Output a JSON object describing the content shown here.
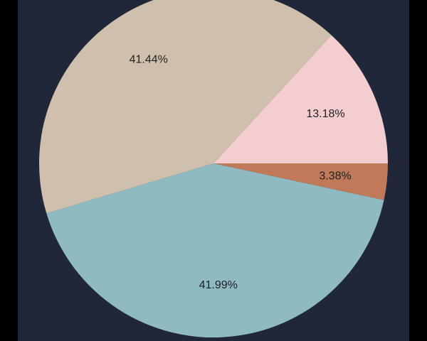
{
  "chart_data": {
    "type": "pie",
    "values": [
      3.38,
      41.99,
      41.44,
      13.18
    ],
    "value_labels": [
      "3.38%",
      "41.99%",
      "41.44%",
      "13.18%"
    ],
    "colors": [
      "#c07a5a",
      "#8fbac1",
      "#cfc0ad",
      "#f4cdd0"
    ]
  }
}
